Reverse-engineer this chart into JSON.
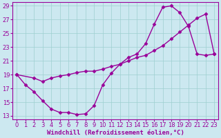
{
  "xlabel": "Windchill (Refroidissement éolien,°C)",
  "bg_color": "#cce8f0",
  "line_color": "#990099",
  "xlim": [
    -0.5,
    23.5
  ],
  "ylim": [
    12.5,
    29.5
  ],
  "xticks": [
    0,
    1,
    2,
    3,
    4,
    5,
    6,
    7,
    8,
    9,
    10,
    11,
    12,
    13,
    14,
    15,
    16,
    17,
    18,
    19,
    20,
    21,
    22,
    23
  ],
  "yticks": [
    13,
    15,
    17,
    19,
    21,
    23,
    25,
    27,
    29
  ],
  "line1_x": [
    0,
    1,
    2,
    3,
    4,
    5,
    6,
    7,
    8,
    9,
    10,
    11,
    12,
    13,
    14,
    15,
    16,
    17,
    18,
    19,
    20,
    21,
    22,
    23
  ],
  "line1_y": [
    19,
    17.5,
    16.5,
    15.2,
    14.0,
    13.5,
    13.5,
    13.2,
    13.3,
    14.5,
    17.5,
    19.2,
    20.5,
    21.5,
    22.0,
    23.5,
    26.3,
    28.8,
    29.0,
    28.0,
    26.0,
    22.0,
    21.8,
    22.0
  ],
  "line2_x": [
    0,
    2,
    3,
    4,
    5,
    6,
    7,
    8,
    9,
    10,
    11,
    12,
    13,
    14,
    15,
    16,
    17,
    18,
    19,
    20,
    21,
    22,
    23
  ],
  "line2_y": [
    19,
    18.5,
    18.0,
    18.5,
    18.8,
    19.0,
    19.3,
    19.5,
    19.5,
    19.8,
    20.2,
    20.5,
    21.0,
    21.5,
    21.8,
    22.5,
    23.2,
    24.2,
    25.2,
    26.2,
    27.2,
    27.8,
    22.0
  ],
  "marker": "D",
  "marker_size": 2.5,
  "line_width": 1.0,
  "xlabel_fontsize": 6.5,
  "tick_fontsize": 6,
  "grid_color": "#9ecfcf",
  "grid_linewidth": 0.5
}
